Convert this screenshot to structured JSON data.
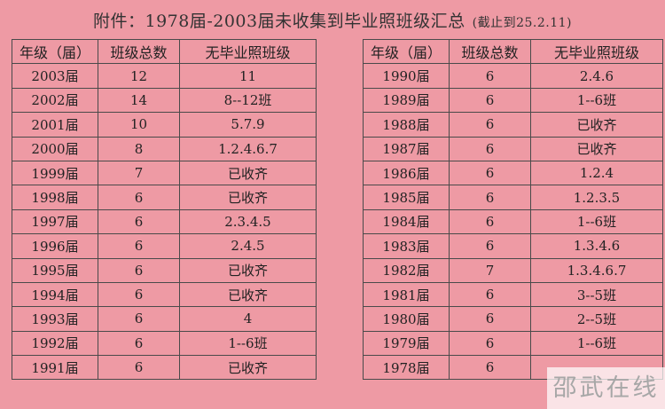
{
  "title": {
    "main": "附件：1978届-2003届未收集到毕业照班级汇总",
    "note": "(截止到25.2.11)"
  },
  "headers": [
    "年级（届）",
    "班级总数",
    "无毕业照班级"
  ],
  "left_rows": [
    [
      "2003届",
      "12",
      "11"
    ],
    [
      "2002届",
      "14",
      "8--12班"
    ],
    [
      "2001届",
      "10",
      "5.7.9"
    ],
    [
      "2000届",
      "8",
      "1.2.4.6.7"
    ],
    [
      "1999届",
      "7",
      "已收齐"
    ],
    [
      "1998届",
      "6",
      "已收齐"
    ],
    [
      "1997届",
      "6",
      "2.3.4.5"
    ],
    [
      "1996届",
      "6",
      "2.4.5"
    ],
    [
      "1995届",
      "6",
      "已收齐"
    ],
    [
      "1994届",
      "6",
      "已收齐"
    ],
    [
      "1993届",
      "6",
      "4"
    ],
    [
      "1992届",
      "6",
      "1--6班"
    ],
    [
      "1991届",
      "6",
      "已收齐"
    ]
  ],
  "right_rows": [
    [
      "1990届",
      "6",
      "2.4.6"
    ],
    [
      "1989届",
      "6",
      "1--6班"
    ],
    [
      "1988届",
      "6",
      "已收齐"
    ],
    [
      "1987届",
      "6",
      "已收齐"
    ],
    [
      "1986届",
      "6",
      "1.2.4"
    ],
    [
      "1985届",
      "6",
      "1.2.3.5"
    ],
    [
      "1984届",
      "6",
      "1--6班"
    ],
    [
      "1983届",
      "6",
      "1.3.4.6"
    ],
    [
      "1982届",
      "7",
      "1.3.4.6.7"
    ],
    [
      "1981届",
      "6",
      "3--5班"
    ],
    [
      "1980届",
      "6",
      "2--5班"
    ],
    [
      "1979届",
      "6",
      "1--6班"
    ],
    [
      "1978届",
      "6",
      ""
    ]
  ],
  "watermark": "邵武在线"
}
